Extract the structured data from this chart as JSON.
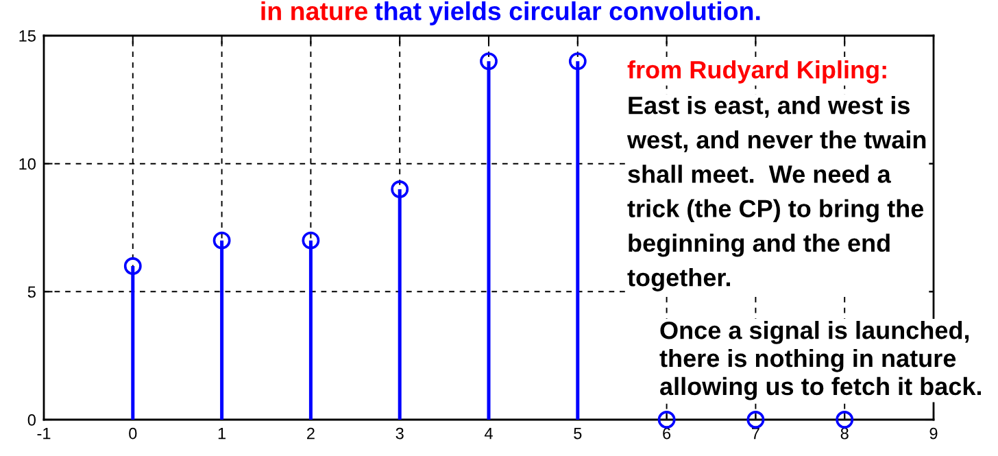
{
  "chart_data": {
    "type": "lollipop",
    "title": "in nature that yields circular convolution.",
    "annotations": [
      "from Rudyard Kipling:",
      "East is east, and west is\nwest, and never the twain\nshall meet.  We need a\ntrick (the CP) to bring the\nbeginning and the end\ntogether.",
      "Once a signal is launched,\nthere is nothing in nature\nallowing us to fetch it back."
    ],
    "x": [
      0,
      1,
      2,
      3,
      4,
      5,
      6,
      7,
      8
    ],
    "values": [
      6,
      7,
      7,
      9,
      14,
      14,
      0,
      0,
      0
    ],
    "color": "#0000ff",
    "marker": "circle",
    "xlim": [
      -1,
      9
    ],
    "xticks": [
      -1,
      0,
      1,
      2,
      3,
      4,
      5,
      6,
      7,
      8,
      9
    ],
    "ylim": [
      0,
      15
    ],
    "yticks": [
      0,
      5,
      10,
      15
    ],
    "grid": true
  }
}
